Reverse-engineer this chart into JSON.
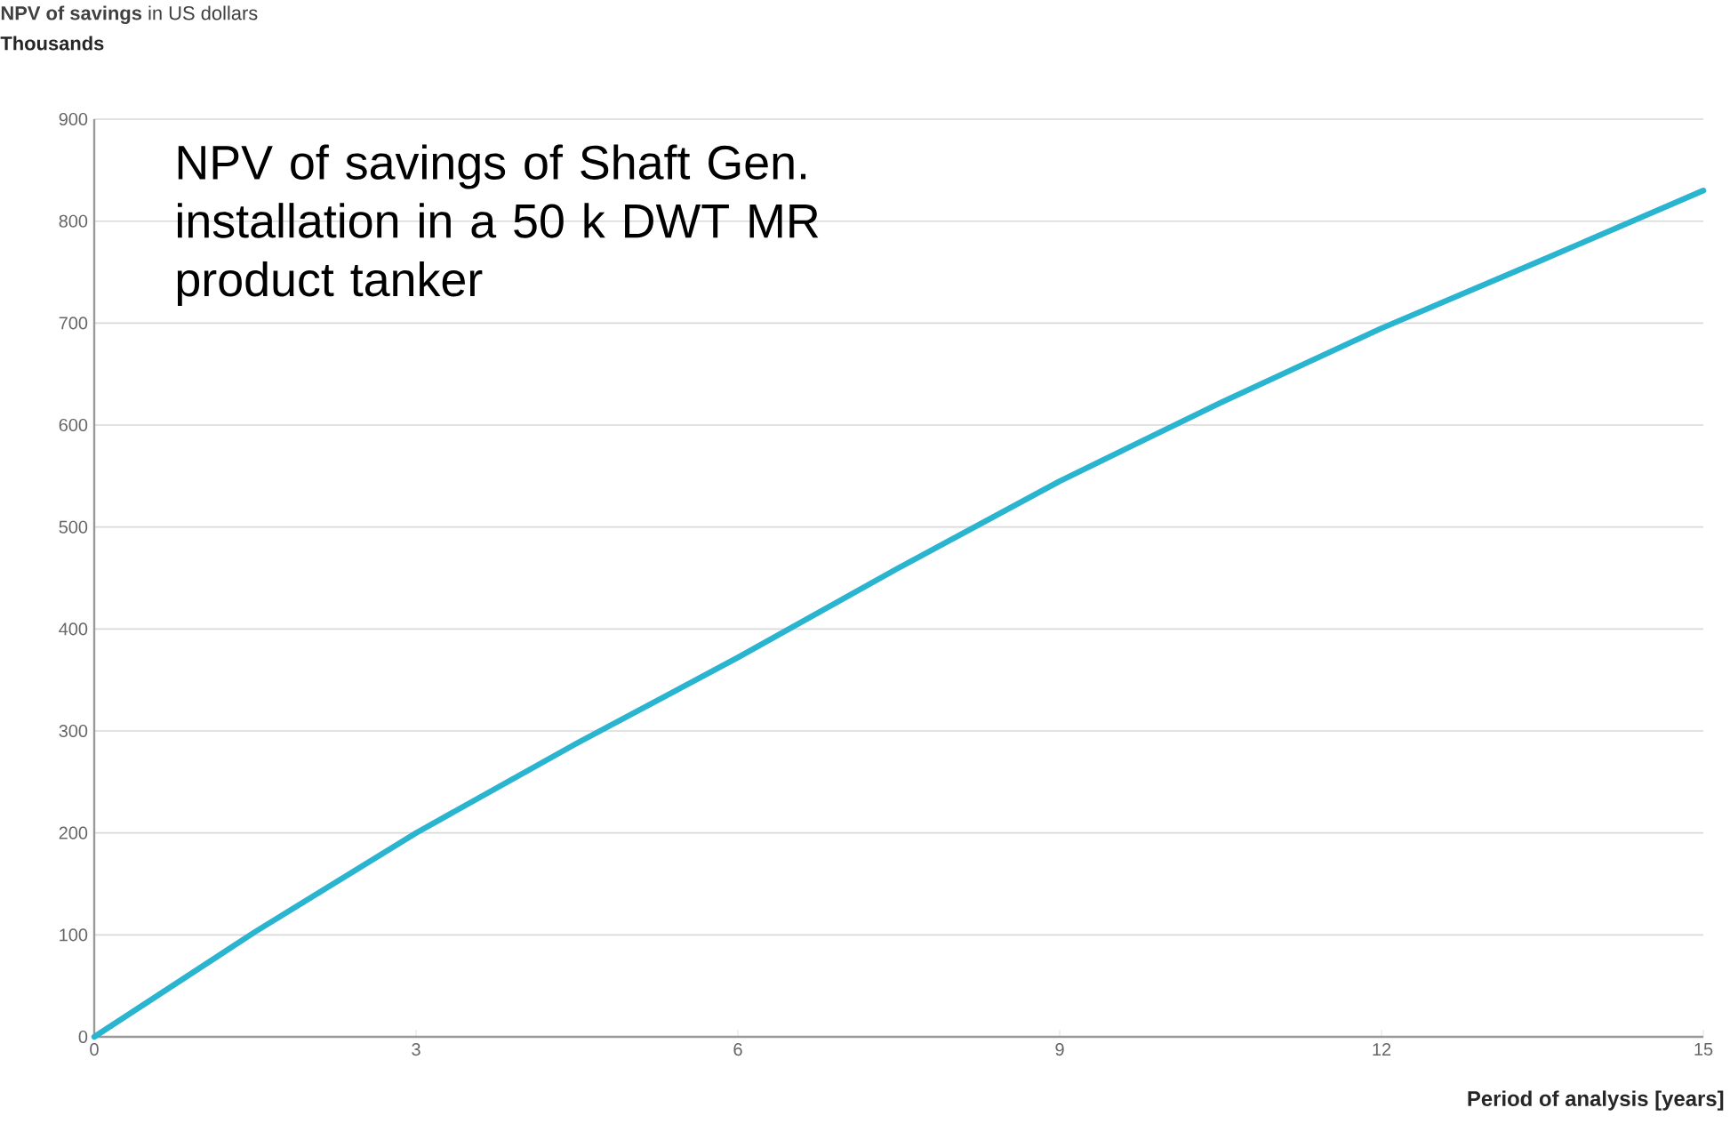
{
  "chart_data": {
    "type": "line",
    "title": "**NPV of savings** in US dollars",
    "ylabel": "Thousands",
    "xlabel": "Period of analysis [years]",
    "annotations": [
      "NPV of savings of Shaft Gen. installation in a 50 k DWT MR product tanker"
    ],
    "x": [
      0,
      1.5,
      3,
      4.5,
      6,
      7.5,
      9,
      10.5,
      12,
      13.5,
      15
    ],
    "series": [
      {
        "color": "#29b4d0",
        "values": [
          0,
          103,
          200,
          288,
          372,
          460,
          545,
          622,
          695,
          762,
          830
        ]
      }
    ],
    "xlim": [
      0,
      15
    ],
    "ylim": [
      0,
      900
    ],
    "xticks": [
      0,
      3,
      6,
      9,
      12,
      15
    ],
    "yticks": [
      0,
      100,
      200,
      300,
      400,
      500,
      600,
      700,
      800,
      900
    ],
    "grid": "y",
    "marker": "none",
    "line_style": "solid"
  }
}
